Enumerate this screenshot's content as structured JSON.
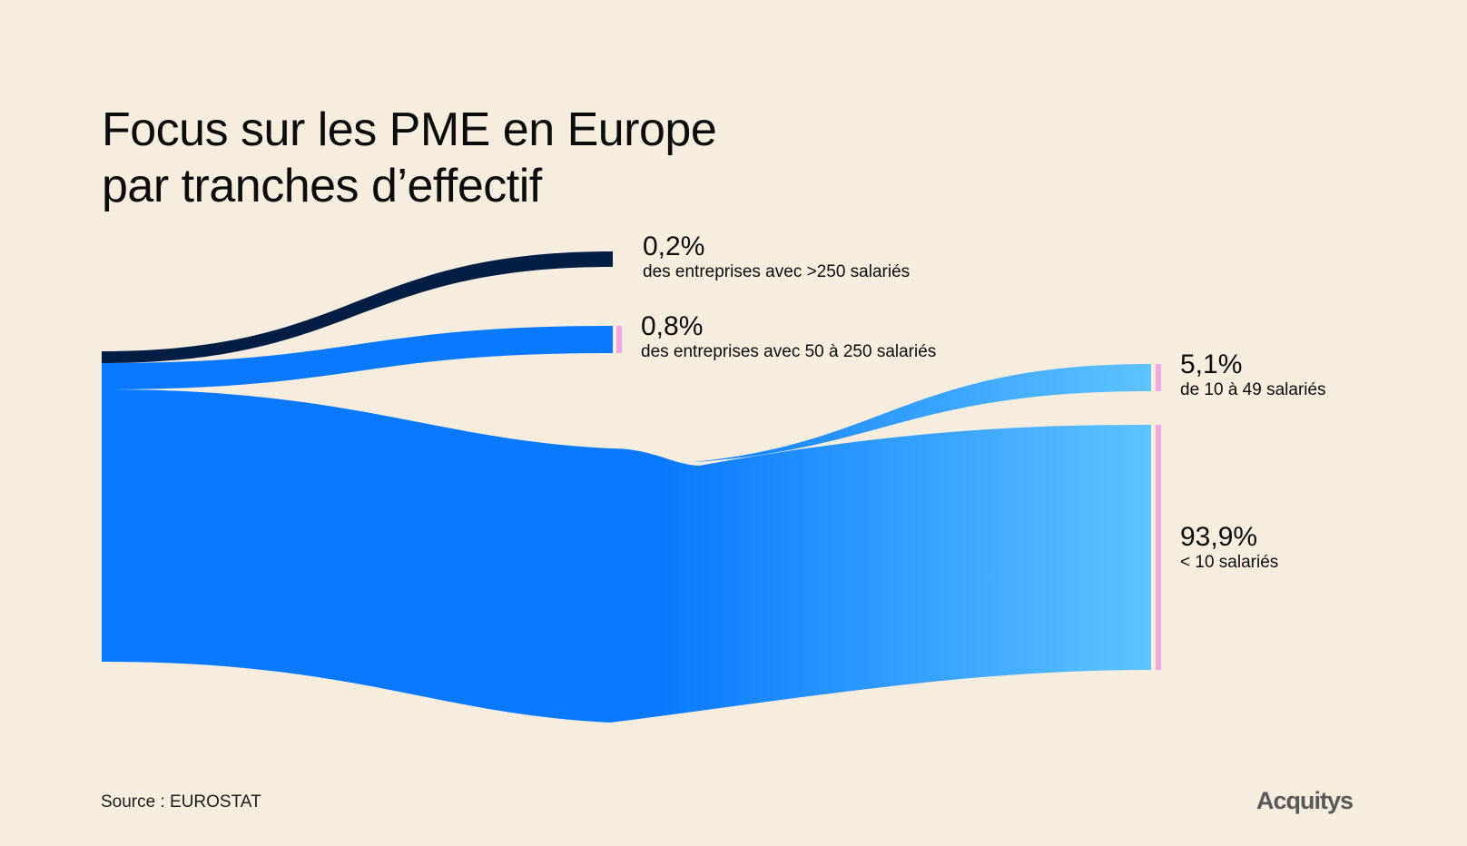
{
  "title": {
    "line1": "Focus sur les PME en Europe",
    "line2": "par tranches d’effectif"
  },
  "chart_data": {
    "type": "sankey",
    "title": "Focus sur les PME en Europe par tranches d’effectif",
    "nodes": [
      {
        "id": "total",
        "label": ""
      },
      {
        "id": "large",
        "value_pct": "0,2%",
        "label": "des entreprises avec >250 salariés"
      },
      {
        "id": "medium",
        "value_pct": "0,8%",
        "label": "des entreprises avec 50 à 250 salariés"
      },
      {
        "id": "under50",
        "label": ""
      },
      {
        "id": "small",
        "value_pct": "5,1%",
        "label": "de 10 à 49 salariés"
      },
      {
        "id": "micro",
        "value_pct": "93,9%",
        "label": "< 10 salariés"
      }
    ],
    "links": [
      {
        "source": "total",
        "target": "large",
        "value": 0.2
      },
      {
        "source": "total",
        "target": "medium",
        "value": 0.8
      },
      {
        "source": "total",
        "target": "under50",
        "value": 99.0
      },
      {
        "source": "under50",
        "target": "small",
        "value": 5.1
      },
      {
        "source": "under50",
        "target": "micro",
        "value": 93.9
      }
    ],
    "colors": {
      "large": "#021d43",
      "medium": "#097aff",
      "main": "#097aff",
      "light": "#5ec4ff",
      "marker": "#f3a8e6"
    }
  },
  "labels": {
    "large": {
      "pct": "0,2%",
      "desc": "des entreprises avec >250 salariés"
    },
    "medium": {
      "pct": "0,8%",
      "desc": "des entreprises avec 50 à 250 salariés"
    },
    "small": {
      "pct": "5,1%",
      "desc": "de 10 à 49 salariés"
    },
    "micro": {
      "pct": "93,9%",
      "desc": "< 10 salariés"
    }
  },
  "footer": {
    "source": "Source : EUROSTAT",
    "logo": "Acquitys"
  }
}
